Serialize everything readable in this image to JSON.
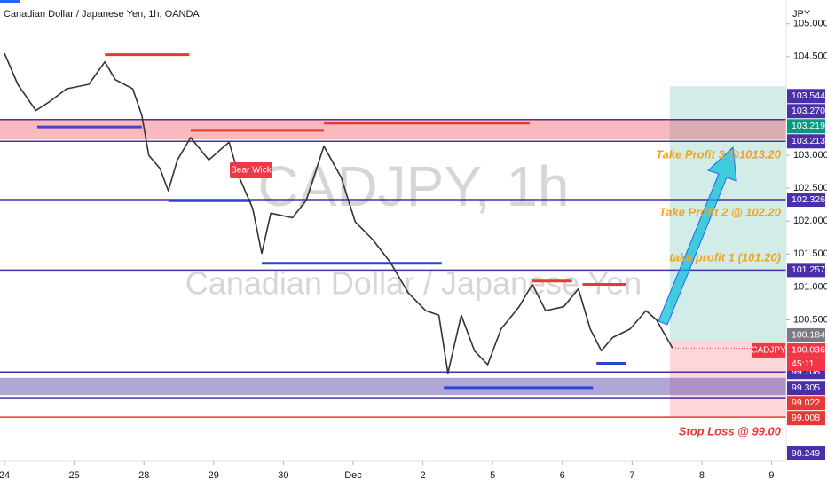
{
  "chart_data": {
    "type": "line",
    "title": "Canadian Dollar / Japanese Yen, 1h, OANDA",
    "watermark": "CADJPY, 1h",
    "watermark_subtitle": "Canadian Dollar / Japanese Yen",
    "unit": "JPY",
    "color": "#333333",
    "x": [
      0,
      0.19,
      0.45,
      0.64,
      0.89,
      1.21,
      1.44,
      1.59,
      1.84,
      1.97,
      2.07,
      2.23,
      2.35,
      2.48,
      2.67,
      2.93,
      3.22,
      3.37,
      3.56,
      3.69,
      3.82,
      4.13,
      4.33,
      4.58,
      4.83,
      5.03,
      5.28,
      5.53,
      5.79,
      6.04,
      6.23,
      6.36,
      6.55,
      6.74,
      6.93,
      7.12,
      7.38,
      7.57,
      7.76,
      8.02,
      8.23,
      8.4,
      8.56,
      8.72,
      8.97,
      9.2,
      9.35,
      9.58
    ],
    "values": [
      104.55,
      104.08,
      103.68,
      103.81,
      104.01,
      104.08,
      104.42,
      104.15,
      104.01,
      103.61,
      103.0,
      102.8,
      102.46,
      102.93,
      103.27,
      102.93,
      103.2,
      102.66,
      102.19,
      101.51,
      102.12,
      102.05,
      102.32,
      103.14,
      102.66,
      101.99,
      101.72,
      101.38,
      100.91,
      100.64,
      100.57,
      99.69,
      100.57,
      100.03,
      99.82,
      100.36,
      100.7,
      101.04,
      100.64,
      100.7,
      100.97,
      100.36,
      100.03,
      100.23,
      100.36,
      100.64,
      100.5,
      100.07
    ],
    "xlim": [
      -0.064,
      11.21
    ],
    "ylim": [
      98.35,
      105.36
    ],
    "xticks": [
      {
        "value": 0,
        "label": "24"
      },
      {
        "value": 1,
        "label": "25"
      },
      {
        "value": 2,
        "label": "28"
      },
      {
        "value": 3,
        "label": "29"
      },
      {
        "value": 4,
        "label": "30"
      },
      {
        "value": 5,
        "label": "Dec"
      },
      {
        "value": 6,
        "label": "2"
      },
      {
        "value": 7,
        "label": "5"
      },
      {
        "value": 8,
        "label": "6"
      },
      {
        "value": 9,
        "label": "7"
      },
      {
        "value": 10,
        "label": "8"
      },
      {
        "value": 11,
        "label": "9"
      }
    ],
    "yticks": [
      {
        "value": 105,
        "label": "105.000"
      },
      {
        "value": 104.5,
        "label": "104.500"
      },
      {
        "value": 103,
        "label": "103.000"
      },
      {
        "value": 102.5,
        "label": "102.500"
      },
      {
        "value": 102,
        "label": "102.000"
      },
      {
        "value": 101.5,
        "label": "101.500"
      },
      {
        "value": 101,
        "label": "101.000"
      },
      {
        "value": 100.5,
        "label": "100.500"
      }
    ],
    "levels": [
      {
        "value": 103.544,
        "color": "#4a2fa8"
      },
      {
        "value": 103.213,
        "color": "#4a2fa8"
      },
      {
        "value": 102.326,
        "color": "#4a2fa8"
      },
      {
        "value": 101.257,
        "color": "#4a2fa8"
      },
      {
        "value": 99.708,
        "color": "#4a2fa8"
      },
      {
        "value": 99.305,
        "color": "#4a2fa8"
      },
      {
        "value": 99.022,
        "color": "#e53935"
      }
    ],
    "zones": [
      {
        "top": 103.544,
        "bottom": 103.24,
        "color": "rgba(242,54,69,0.35)"
      },
      {
        "top": 99.62,
        "bottom": 99.36,
        "color": "rgba(80,60,170,0.45)"
      }
    ],
    "segments": [
      {
        "price": 104.53,
        "x0": 1.44,
        "x1": 2.65,
        "color": "#e53935"
      },
      {
        "price": 103.43,
        "x0": 0.47,
        "x1": 1.97,
        "color": "#4a44c8"
      },
      {
        "price": 103.38,
        "x0": 2.67,
        "x1": 4.58,
        "color": "#e53935"
      },
      {
        "price": 103.49,
        "x0": 4.58,
        "x1": 7.53,
        "color": "#e53935"
      },
      {
        "price": 102.31,
        "x0": 2.35,
        "x1": 3.54,
        "color": "#2a44d4"
      },
      {
        "price": 101.36,
        "x0": 3.69,
        "x1": 6.27,
        "color": "#2a44d4"
      },
      {
        "price": 101.09,
        "x0": 7.57,
        "x1": 8.14,
        "color": "#e53935"
      },
      {
        "price": 101.04,
        "x0": 8.29,
        "x1": 8.91,
        "color": "#e53935"
      },
      {
        "price": 99.84,
        "x0": 8.49,
        "x1": 8.91,
        "color": "#2a44d4"
      },
      {
        "price": 99.47,
        "x0": 6.3,
        "x1": 8.44,
        "color": "#2a44d4"
      }
    ],
    "position": {
      "x0": 9.54,
      "x1": 11.21,
      "entry": 100.184,
      "target": 104.05,
      "stop": 99.01
    },
    "price_labels": [
      {
        "value": 98.249,
        "color": "#4a2fa8"
      },
      {
        "value": 99.008,
        "color": "#e53935"
      },
      {
        "value": 99.022,
        "color": "#e53935"
      },
      {
        "value": 99.305,
        "color": "#4a2fa8"
      },
      {
        "value": 99.708,
        "color": "#4a2fa8"
      },
      {
        "value": 100.036,
        "color": "#f23645"
      },
      {
        "value": 100.184,
        "color": "#787b86"
      },
      {
        "value": 101.257,
        "color": "#4a2fa8"
      },
      {
        "value": 102.326,
        "color": "#4a2fa8"
      },
      {
        "value": 103.213,
        "color": "#4a2fa8"
      },
      {
        "value": 103.219,
        "color": "#089981"
      },
      {
        "value": 103.27,
        "label": "103.270",
        "color": "#4a2fa8"
      },
      {
        "value": 103.544,
        "color": "#4a2fa8"
      }
    ],
    "symbol_label": "CADJPY",
    "countdown": "45:11",
    "annotations": [
      "Take Profit 3 @1013.20",
      "Take Profit 2 @ 102.20",
      "take profit 1 (101.20)",
      "Stop Loss @ 99.00"
    ],
    "candle_label": "Bear Wick"
  }
}
